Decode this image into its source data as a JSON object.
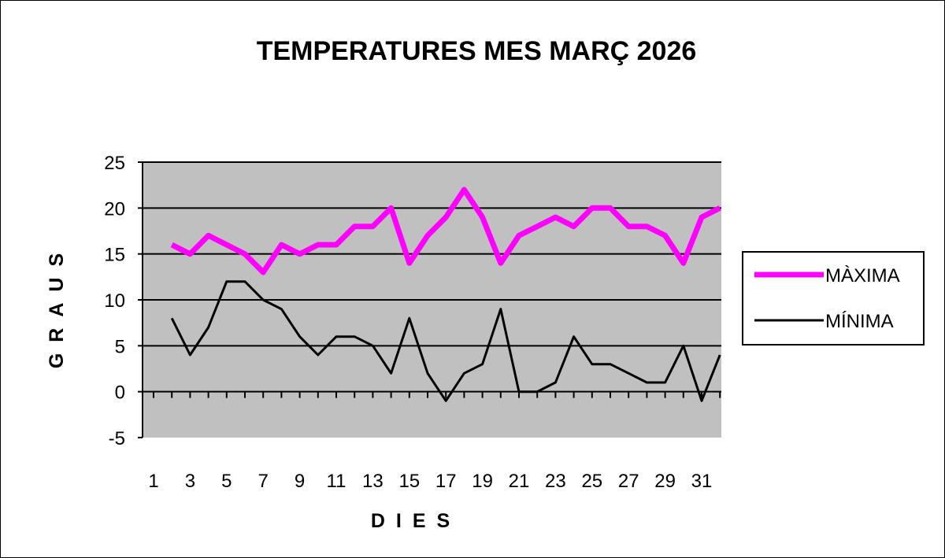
{
  "chart_data": {
    "type": "line",
    "title": "TEMPERATURES MES MARÇ 2026",
    "xlabel": "DIES",
    "ylabel": "GRAUS",
    "ylim": [
      -5,
      25
    ],
    "yticks": [
      -5,
      0,
      5,
      10,
      15,
      20,
      25
    ],
    "xticks": [
      1,
      3,
      5,
      7,
      9,
      11,
      13,
      15,
      17,
      19,
      21,
      23,
      25,
      27,
      29,
      31
    ],
    "x": [
      1,
      2,
      3,
      4,
      5,
      6,
      7,
      8,
      9,
      10,
      11,
      12,
      13,
      14,
      15,
      16,
      17,
      18,
      19,
      20,
      21,
      22,
      23,
      24,
      25,
      26,
      27,
      28,
      29,
      30,
      31
    ],
    "grid": true,
    "legend_position": "right",
    "plot_background": "#c0c0c0",
    "series": [
      {
        "name": "MÀXIMA",
        "color": "#ff00ff",
        "values": [
          16,
          15,
          17,
          16,
          15,
          13,
          16,
          15,
          16,
          16,
          18,
          18,
          20,
          14,
          17,
          19,
          22,
          19,
          14,
          17,
          18,
          19,
          18,
          20,
          20,
          18,
          18,
          17,
          14,
          19,
          20
        ]
      },
      {
        "name": "MÍNIMA",
        "color": "#000000",
        "values": [
          8,
          4,
          7,
          12,
          12,
          10,
          9,
          6,
          4,
          6,
          6,
          5,
          2,
          8,
          2,
          -1,
          2,
          3,
          9,
          0,
          0,
          1,
          6,
          3,
          3,
          2,
          1,
          1,
          5,
          -1,
          4
        ]
      }
    ]
  }
}
